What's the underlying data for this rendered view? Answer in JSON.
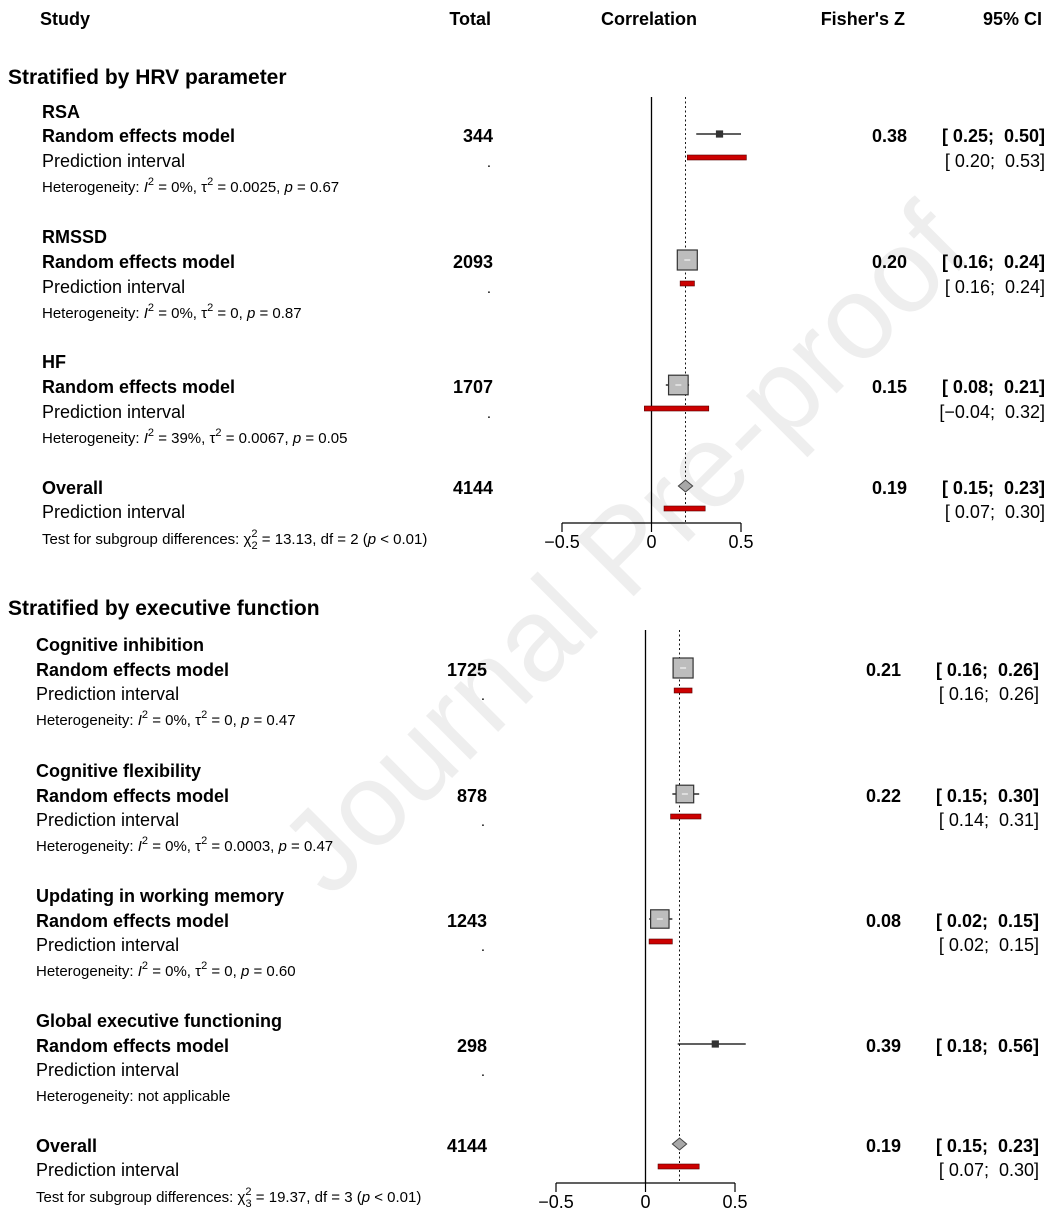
{
  "header": {
    "study": "Study",
    "total": "Total",
    "correlation": "Correlation",
    "fisher": "Fisher's Z",
    "ci": "95% CI"
  },
  "watermark": "Journal Pre-proof",
  "colors": {
    "prediction": "#cc0000",
    "box": "#bdbdbd",
    "diamond": "#a8a8a8"
  },
  "chart_data": [
    {
      "type": "forest",
      "title": "Stratified by HRV parameter",
      "xlim": [
        -0.5,
        0.5
      ],
      "ticks": [
        "−0.5",
        "0",
        "0.5"
      ],
      "reference_line": 0.19,
      "subgroups": [
        {
          "name": "RSA",
          "total": "344",
          "est": 0.38,
          "ci_lo": 0.25,
          "ci_hi": 0.5,
          "fisher_z": "0.38",
          "ci_text": "[ 0.25;  0.50]",
          "pi_lo": 0.2,
          "pi_hi": 0.53,
          "pi_text": "[ 0.20;  0.53]",
          "weight": 0.15,
          "het": {
            "i2": "0%",
            "tau2": "0.0025",
            "p": "0.67"
          }
        },
        {
          "name": "RMSSD",
          "total": "2093",
          "est": 0.2,
          "ci_lo": 0.16,
          "ci_hi": 0.24,
          "fisher_z": "0.20",
          "ci_text": "[ 0.16;  0.24]",
          "pi_lo": 0.16,
          "pi_hi": 0.24,
          "pi_text": "[ 0.16;  0.24]",
          "weight": 1.0,
          "het": {
            "i2": "0%",
            "tau2": "0",
            "p": "0.87"
          }
        },
        {
          "name": "HF",
          "total": "1707",
          "est": 0.15,
          "ci_lo": 0.08,
          "ci_hi": 0.21,
          "fisher_z": "0.15",
          "ci_text": "[ 0.08;  0.21]",
          "pi_lo": -0.04,
          "pi_hi": 0.32,
          "pi_text": "[−0.04;  0.32]",
          "weight": 0.95,
          "het": {
            "i2": "39%",
            "tau2": "0.0067",
            "p": "0.05"
          }
        }
      ],
      "overall": {
        "label": "Overall",
        "total": "4144",
        "est": 0.19,
        "ci_lo": 0.15,
        "ci_hi": 0.23,
        "fisher_z": "0.19",
        "ci_text": "[ 0.15;  0.23]",
        "pi_lo": 0.07,
        "pi_hi": 0.3,
        "pi_text": "[ 0.07;  0.30]"
      },
      "subgroup_test": {
        "chi2": "13.13",
        "df_sub": "2",
        "df": "2",
        "p": "< 0.01"
      }
    },
    {
      "type": "forest",
      "title": "Stratified by executive function",
      "xlim": [
        -0.5,
        0.5
      ],
      "ticks": [
        "−0.5",
        "0",
        "0.5"
      ],
      "reference_line": 0.19,
      "subgroups": [
        {
          "name": "Cognitive inhibition",
          "total": "1725",
          "est": 0.21,
          "ci_lo": 0.16,
          "ci_hi": 0.26,
          "fisher_z": "0.21",
          "ci_text": "[ 0.16;  0.26]",
          "pi_lo": 0.16,
          "pi_hi": 0.26,
          "pi_text": "[ 0.16;  0.26]",
          "weight": 1.0,
          "het": {
            "i2": "0%",
            "tau2": "0",
            "p": "0.47"
          }
        },
        {
          "name": "Cognitive flexibility",
          "total": "878",
          "est": 0.22,
          "ci_lo": 0.15,
          "ci_hi": 0.3,
          "fisher_z": "0.22",
          "ci_text": "[ 0.15;  0.30]",
          "pi_lo": 0.14,
          "pi_hi": 0.31,
          "pi_text": "[ 0.14;  0.31]",
          "weight": 0.7,
          "het": {
            "i2": "0%",
            "tau2": "0.0003",
            "p": "0.47"
          }
        },
        {
          "name": "Updating in working memory",
          "total": "1243",
          "est": 0.08,
          "ci_lo": 0.02,
          "ci_hi": 0.15,
          "fisher_z": "0.08",
          "ci_text": "[ 0.02;  0.15]",
          "pi_lo": 0.02,
          "pi_hi": 0.15,
          "pi_text": "[ 0.02;  0.15]",
          "weight": 0.8,
          "het": {
            "i2": "0%",
            "tau2": "0",
            "p": "0.60"
          }
        },
        {
          "name": "Global executive functioning",
          "total": "298",
          "est": 0.39,
          "ci_lo": 0.18,
          "ci_hi": 0.56,
          "fisher_z": "0.39",
          "ci_text": "[ 0.18;  0.56]",
          "pi_lo": null,
          "pi_hi": null,
          "pi_text": "",
          "weight": 0.1,
          "het_text": "Heterogeneity: not applicable"
        }
      ],
      "overall": {
        "label": "Overall",
        "total": "4144",
        "est": 0.19,
        "ci_lo": 0.15,
        "ci_hi": 0.23,
        "fisher_z": "0.19",
        "ci_text": "[ 0.15;  0.23]",
        "pi_lo": 0.07,
        "pi_hi": 0.3,
        "pi_text": "[ 0.07;  0.30]"
      },
      "subgroup_test": {
        "chi2": "19.37",
        "df_sub": "3",
        "df": "3",
        "p": "< 0.01"
      }
    }
  ],
  "labels": {
    "random_effects": "Random effects model",
    "prediction": "Prediction interval",
    "dot": ".",
    "het_prefix": "Heterogeneity: ",
    "test_prefix": "Test for subgroup differences: "
  }
}
